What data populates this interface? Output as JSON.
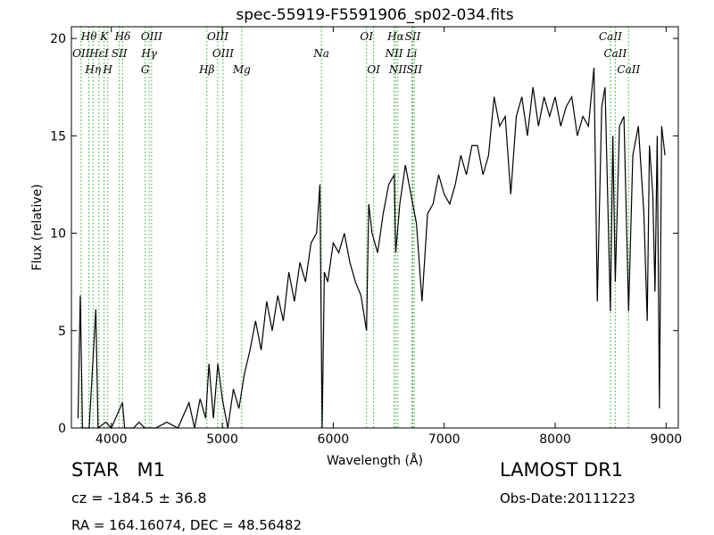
{
  "chart_data": {
    "type": "line",
    "title": "spec-55919-F5591906_sp02-034.fits",
    "x_label": "Wavelength (Å)",
    "y_label": "Flux (relative)",
    "xlim": [
      3640,
      9110
    ],
    "ylim": [
      0,
      20.6
    ],
    "xticks": [
      4000,
      5000,
      6000,
      7000,
      8000,
      9000
    ],
    "yticks": [
      0,
      5,
      10,
      15,
      20
    ],
    "color": "#000000",
    "line_color": "#33aa33",
    "x": [
      3700,
      3720,
      3740,
      3800,
      3860,
      3880,
      3950,
      4000,
      4100,
      4120,
      4200,
      4250,
      4300,
      4400,
      4500,
      4600,
      4700,
      4750,
      4800,
      4850,
      4880,
      4920,
      4960,
      5000,
      5050,
      5100,
      5150,
      5200,
      5250,
      5300,
      5350,
      5400,
      5450,
      5500,
      5550,
      5600,
      5650,
      5700,
      5750,
      5800,
      5850,
      5880,
      5900,
      5920,
      5950,
      6000,
      6050,
      6100,
      6150,
      6200,
      6250,
      6300,
      6320,
      6350,
      6400,
      6450,
      6500,
      6550,
      6563,
      6600,
      6650,
      6700,
      6750,
      6800,
      6850,
      6900,
      6950,
      7000,
      7050,
      7100,
      7150,
      7200,
      7250,
      7300,
      7350,
      7400,
      7450,
      7500,
      7550,
      7600,
      7650,
      7700,
      7750,
      7800,
      7850,
      7900,
      7950,
      8000,
      8050,
      8100,
      8150,
      8200,
      8250,
      8300,
      8350,
      8380,
      8420,
      8450,
      8498,
      8520,
      8542,
      8580,
      8620,
      8662,
      8700,
      8750,
      8800,
      8830,
      8850,
      8880,
      8900,
      8920,
      8940,
      8960,
      8990
    ],
    "values": [
      0.5,
      6.8,
      0,
      0,
      6.1,
      0,
      0.3,
      0,
      1.3,
      0,
      0,
      0.3,
      0,
      0,
      0.3,
      0,
      1.3,
      0,
      1.5,
      0.5,
      3.3,
      0.5,
      3.3,
      1.5,
      0,
      2.0,
      1.0,
      2.8,
      4.0,
      5.5,
      4.0,
      6.5,
      5.0,
      6.8,
      5.5,
      8.0,
      6.5,
      8.5,
      7.5,
      9.5,
      10.0,
      12.5,
      0,
      8.0,
      7.5,
      9.5,
      9.0,
      10.0,
      8.5,
      7.5,
      6.8,
      5.0,
      11.5,
      10.0,
      9.0,
      11.0,
      12.5,
      13.0,
      9.0,
      11.5,
      13.5,
      12.0,
      10.5,
      6.5,
      11.0,
      11.5,
      13.0,
      12.0,
      11.5,
      12.5,
      14.0,
      13.0,
      14.5,
      14.5,
      13.0,
      14.0,
      17.0,
      15.5,
      16.0,
      12.0,
      16.0,
      17.0,
      15.0,
      17.5,
      15.5,
      17.0,
      16.0,
      17.0,
      15.5,
      16.5,
      17.0,
      15.0,
      16.0,
      15.5,
      18.5,
      6.5,
      16.5,
      17.5,
      6.0,
      15.0,
      7.5,
      15.5,
      16.0,
      6.0,
      14.0,
      15.5,
      11.0,
      5.5,
      14.5,
      12.0,
      7.0,
      15.0,
      1.0,
      15.5,
      14.0
    ],
    "lines": [
      {
        "label": "Hθ",
        "wavelength": 3798
      },
      {
        "label": "OII",
        "wavelength": 3727
      },
      {
        "label": "Hη",
        "wavelength": 3835
      },
      {
        "label": "K",
        "wavelength": 3934
      },
      {
        "label": "HεI",
        "wavelength": 3889
      },
      {
        "label": "H",
        "wavelength": 3968
      },
      {
        "label": "Hδ",
        "wavelength": 4102
      },
      {
        "label": "SII",
        "wavelength": 4072
      },
      {
        "label": "G",
        "wavelength": 4305
      },
      {
        "label": "OIII",
        "wavelength": 4363
      },
      {
        "label": "Hγ",
        "wavelength": 4341
      },
      {
        "label": "Hβ",
        "wavelength": 4861
      },
      {
        "label": "OIII",
        "wavelength": 4959
      },
      {
        "label": "OIII",
        "wavelength": 5007
      },
      {
        "label": "Mg",
        "wavelength": 5175
      },
      {
        "label": "OI",
        "wavelength": 6300
      },
      {
        "label": "Na",
        "wavelength": 5893
      },
      {
        "label": "OI",
        "wavelength": 6364
      },
      {
        "label": "Hα",
        "wavelength": 6563
      },
      {
        "label": "NII",
        "wavelength": 6548
      },
      {
        "label": "NII",
        "wavelength": 6583
      },
      {
        "label": "SII",
        "wavelength": 6717
      },
      {
        "label": "Li",
        "wavelength": 6708
      },
      {
        "label": "SII",
        "wavelength": 6731
      },
      {
        "label": "CaII",
        "wavelength": 8498
      },
      {
        "label": "CaII",
        "wavelength": 8542
      },
      {
        "label": "CaII",
        "wavelength": 8662
      }
    ],
    "object_class": "STAR   M1",
    "redshift": "cz = -184.5 ± 36.8",
    "coordinates": "RA = 164.16074, DEC = 48.56482",
    "survey": "LAMOST DR1",
    "obs_date": "Obs-Date:20111223"
  }
}
